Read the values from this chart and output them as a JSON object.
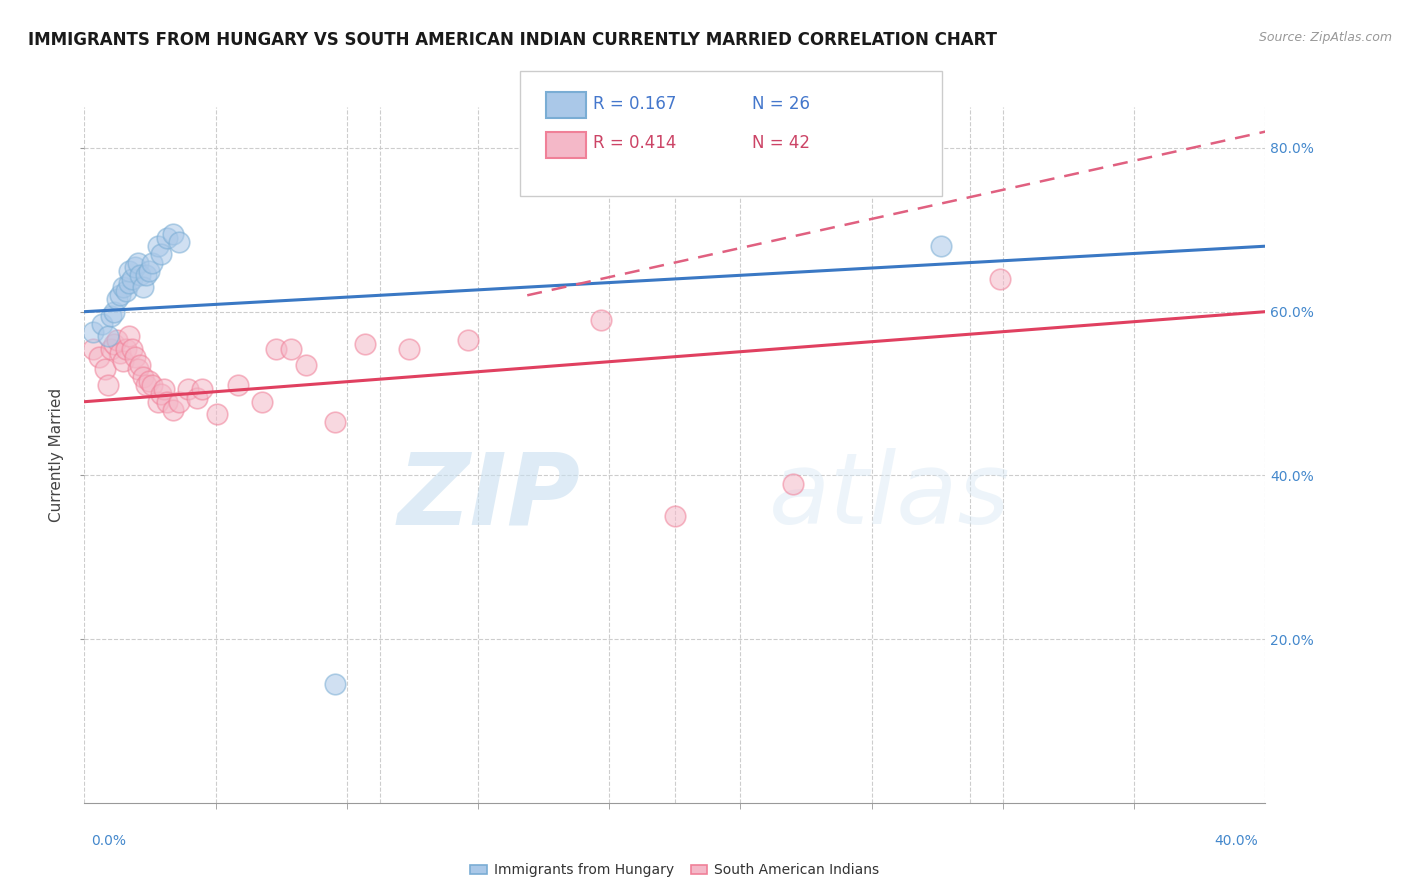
{
  "title": "IMMIGRANTS FROM HUNGARY VS SOUTH AMERICAN INDIAN CURRENTLY MARRIED CORRELATION CHART",
  "source_text": "Source: ZipAtlas.com",
  "ylabel": "Currently Married",
  "xlim": [
    0.0,
    0.4
  ],
  "ylim": [
    0.0,
    0.85
  ],
  "x_tick_labels": [
    "0.0%",
    "",
    "",
    "",
    "",
    "",
    "",
    "",
    "",
    "40.0%"
  ],
  "x_tick_vals": [
    0.0,
    0.04444,
    0.08889,
    0.13333,
    0.17778,
    0.22222,
    0.26667,
    0.31111,
    0.35556,
    0.4
  ],
  "y_tick_labels": [
    "20.0%",
    "40.0%",
    "60.0%",
    "80.0%"
  ],
  "y_tick_vals": [
    0.2,
    0.4,
    0.6,
    0.8
  ],
  "legend_r_blue": "0.167",
  "legend_n_blue": "26",
  "legend_r_pink": "0.414",
  "legend_n_pink": "42",
  "blue_fill_color": "#aac8e8",
  "pink_fill_color": "#f4b8c8",
  "blue_edge_color": "#7aadd4",
  "pink_edge_color": "#f08098",
  "blue_line_color": "#3a78c4",
  "pink_line_color": "#e04060",
  "pink_dash_color": "#e06080",
  "watermark_zip": "ZIP",
  "watermark_atlas": "atlas",
  "grid_color": "#c8c8c8",
  "background_color": "#ffffff",
  "title_fontsize": 12,
  "axis_label_fontsize": 11,
  "tick_fontsize": 10,
  "legend_fontsize": 12,
  "blue_scatter_x": [
    0.003,
    0.006,
    0.008,
    0.009,
    0.01,
    0.011,
    0.012,
    0.013,
    0.014,
    0.015,
    0.015,
    0.016,
    0.017,
    0.018,
    0.019,
    0.02,
    0.021,
    0.022,
    0.023,
    0.025,
    0.026,
    0.028,
    0.03,
    0.032,
    0.29,
    0.085
  ],
  "blue_scatter_y": [
    0.575,
    0.585,
    0.57,
    0.595,
    0.6,
    0.615,
    0.62,
    0.63,
    0.625,
    0.635,
    0.65,
    0.64,
    0.655,
    0.66,
    0.645,
    0.63,
    0.645,
    0.65,
    0.66,
    0.68,
    0.67,
    0.69,
    0.695,
    0.685,
    0.68,
    0.145
  ],
  "pink_scatter_x": [
    0.003,
    0.005,
    0.007,
    0.008,
    0.009,
    0.01,
    0.011,
    0.012,
    0.013,
    0.014,
    0.015,
    0.016,
    0.017,
    0.018,
    0.019,
    0.02,
    0.021,
    0.022,
    0.023,
    0.025,
    0.026,
    0.027,
    0.028,
    0.03,
    0.032,
    0.035,
    0.038,
    0.04,
    0.045,
    0.052,
    0.06,
    0.065,
    0.07,
    0.075,
    0.085,
    0.095,
    0.11,
    0.13,
    0.175,
    0.2,
    0.24,
    0.31
  ],
  "pink_scatter_y": [
    0.555,
    0.545,
    0.53,
    0.51,
    0.555,
    0.56,
    0.565,
    0.55,
    0.54,
    0.555,
    0.57,
    0.555,
    0.545,
    0.53,
    0.535,
    0.52,
    0.51,
    0.515,
    0.51,
    0.49,
    0.5,
    0.505,
    0.49,
    0.48,
    0.49,
    0.505,
    0.495,
    0.505,
    0.475,
    0.51,
    0.49,
    0.555,
    0.555,
    0.535,
    0.465,
    0.56,
    0.555,
    0.565,
    0.59,
    0.35,
    0.39,
    0.64
  ],
  "blue_line_x": [
    0.0,
    0.4
  ],
  "blue_line_y": [
    0.6,
    0.68
  ],
  "pink_line_x": [
    0.0,
    0.4
  ],
  "pink_line_y": [
    0.49,
    0.6
  ],
  "pink_dash_line_x": [
    0.15,
    0.4
  ],
  "pink_dash_line_y": [
    0.62,
    0.82
  ]
}
